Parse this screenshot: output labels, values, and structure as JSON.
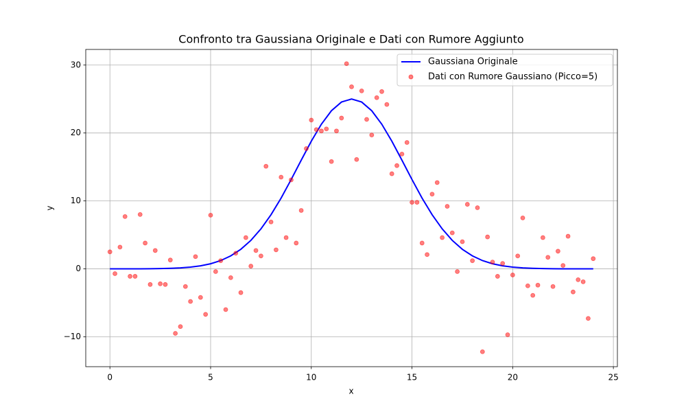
{
  "chart_data": {
    "type": "line",
    "title": "Confronto tra Gaussiana Originale e Dati con Rumore Aggiunto",
    "xlabel": "x",
    "ylabel": "y",
    "xlim": [
      -1.2,
      25.2
    ],
    "ylim": [
      -14.4,
      32.3
    ],
    "xticks": [
      0,
      5,
      10,
      15,
      20,
      25
    ],
    "yticks": [
      {
        "value": -10,
        "label": "−10"
      },
      0,
      10,
      20,
      30
    ],
    "grid": true,
    "legend": "upper right",
    "series": [
      {
        "name": "Gaussiana Originale",
        "type": "line",
        "color": "#0000ff",
        "x": [
          0,
          0.5,
          1,
          1.5,
          2,
          2.5,
          3,
          3.5,
          4,
          4.5,
          5,
          5.5,
          6,
          6.5,
          7,
          7.5,
          8,
          8.5,
          9,
          9.5,
          10,
          10.5,
          11,
          11.5,
          12,
          12.5,
          13,
          13.5,
          14,
          14.5,
          15,
          15.5,
          16,
          16.5,
          17,
          17.5,
          18,
          18.5,
          19,
          19.5,
          20,
          20.5,
          21,
          21.5,
          22,
          22.5,
          23,
          23.5,
          24
        ],
        "values": [
          0,
          0,
          0,
          0.01,
          0.02,
          0.04,
          0.08,
          0.14,
          0.26,
          0.45,
          0.75,
          1.22,
          1.91,
          2.88,
          4.19,
          5.89,
          7.97,
          10.42,
          13.15,
          16.0,
          18.79,
          21.29,
          23.28,
          24.56,
          25,
          24.56,
          23.28,
          21.29,
          18.79,
          16.0,
          13.15,
          10.42,
          7.97,
          5.89,
          4.19,
          2.88,
          1.91,
          1.22,
          0.75,
          0.45,
          0.26,
          0.14,
          0.08,
          0.04,
          0.02,
          0.01,
          0,
          0,
          0
        ]
      },
      {
        "name": "Dati con Rumore Gaussiano (Picco=5)",
        "type": "scatter",
        "color": "#ff0000",
        "x": [
          0,
          0.25,
          0.5,
          0.75,
          1,
          1.25,
          1.5,
          1.75,
          2,
          2.25,
          2.5,
          2.75,
          3,
          3.25,
          3.5,
          3.75,
          4,
          4.25,
          4.5,
          4.75,
          5,
          5.25,
          5.5,
          5.75,
          6,
          6.25,
          6.5,
          6.75,
          7,
          7.25,
          7.5,
          7.75,
          8,
          8.25,
          8.5,
          8.75,
          9,
          9.25,
          9.5,
          9.75,
          10,
          10.25,
          10.5,
          10.75,
          11,
          11.25,
          11.5,
          11.75,
          12,
          12.25,
          12.5,
          12.75,
          13,
          13.25,
          13.5,
          13.75,
          14,
          14.25,
          14.5,
          14.75,
          15,
          15.25,
          15.5,
          15.75,
          16,
          16.25,
          16.5,
          16.75,
          17,
          17.25,
          17.5,
          17.75,
          18,
          18.25,
          18.5,
          18.75,
          19,
          19.25,
          19.5,
          19.75,
          20,
          20.25,
          20.5,
          20.75,
          21,
          21.25,
          21.5,
          21.75,
          22,
          22.25,
          22.5,
          22.75,
          23,
          23.25,
          23.5,
          23.75,
          24
        ],
        "values": [
          2.5,
          -0.7,
          3.2,
          7.7,
          -1.1,
          -1.1,
          8.0,
          3.8,
          -2.3,
          2.7,
          -2.2,
          -2.3,
          1.3,
          -9.5,
          -8.5,
          -2.6,
          -4.8,
          1.8,
          -4.2,
          -6.7,
          7.9,
          -0.4,
          1.2,
          -6.0,
          -1.3,
          2.3,
          -3.5,
          4.6,
          0.4,
          2.7,
          1.9,
          15.1,
          6.9,
          2.8,
          13.5,
          4.6,
          13.1,
          3.8,
          8.6,
          17.7,
          21.9,
          20.5,
          20.3,
          20.6,
          15.8,
          20.3,
          22.2,
          30.2,
          26.8,
          16.1,
          26.2,
          22.0,
          19.7,
          25.2,
          26.1,
          24.2,
          14.0,
          15.2,
          16.9,
          18.6,
          9.8,
          9.8,
          3.8,
          2.1,
          11.0,
          12.7,
          4.6,
          9.2,
          5.3,
          -0.4,
          4.0,
          9.5,
          1.2,
          9.0,
          -12.2,
          4.7,
          1.0,
          -1.1,
          0.8,
          -9.7,
          -0.9,
          1.9,
          7.5,
          -2.5,
          -3.9,
          -2.4,
          4.6,
          1.7,
          -2.6,
          2.6,
          0.5,
          4.8,
          -3.4,
          -1.6,
          -1.9,
          -7.3,
          1.5
        ]
      }
    ]
  }
}
